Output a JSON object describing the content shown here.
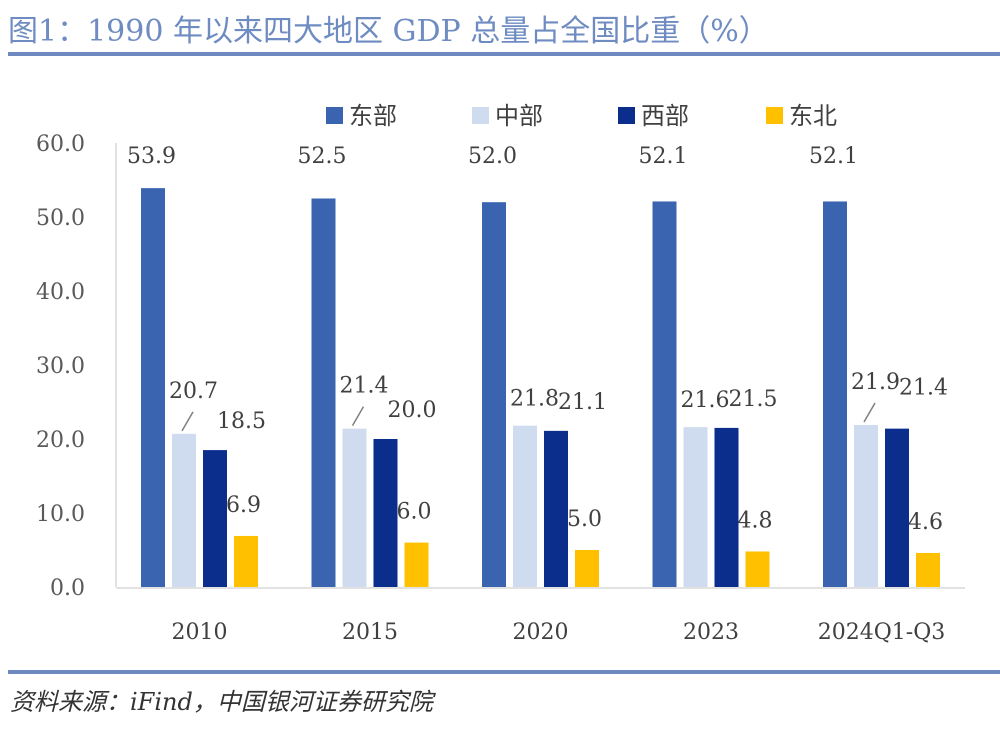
{
  "figure": {
    "title": "图1：1990 年以来四大地区 GDP 总量占全国比重（%）",
    "source": "资料来源：iFind，中国银河证券研究院"
  },
  "chart_data": {
    "type": "bar",
    "title": "1990 年以来四大地区 GDP 总量占全国比重（%）",
    "xlabel": "",
    "ylabel": "",
    "ylim": [
      0,
      60
    ],
    "yticks": [
      0,
      10,
      20,
      30,
      40,
      50,
      60
    ],
    "ytick_labels": [
      "0.0",
      "10.0",
      "20.0",
      "30.0",
      "40.0",
      "50.0",
      "60.0"
    ],
    "grid": false,
    "legend_position": "top",
    "categories": [
      "2010",
      "2015",
      "2020",
      "2023",
      "2024Q1-Q3"
    ],
    "series": [
      {
        "name": "东部",
        "color": "#3a64b0",
        "values": [
          53.9,
          52.5,
          52.0,
          52.1,
          52.1
        ]
      },
      {
        "name": "中部",
        "color": "#cfdcf0",
        "values": [
          20.7,
          21.4,
          21.8,
          21.6,
          21.9
        ]
      },
      {
        "name": "西部",
        "color": "#0b2d8c",
        "values": [
          18.5,
          20.0,
          21.1,
          21.5,
          21.4
        ]
      },
      {
        "name": "东北",
        "color": "#ffc000",
        "values": [
          6.9,
          6.0,
          5.0,
          4.8,
          4.6
        ]
      }
    ],
    "data_labels": [
      [
        "53.9",
        "52.5",
        "52.0",
        "52.1",
        "52.1"
      ],
      [
        "20.7",
        "21.4",
        "21.8",
        "21.6",
        "21.9"
      ],
      [
        "18.5",
        "20.0",
        "21.1",
        "21.5",
        "21.4"
      ],
      [
        "6.9",
        "6.0",
        "5.0",
        "4.8",
        "4.6"
      ]
    ]
  }
}
